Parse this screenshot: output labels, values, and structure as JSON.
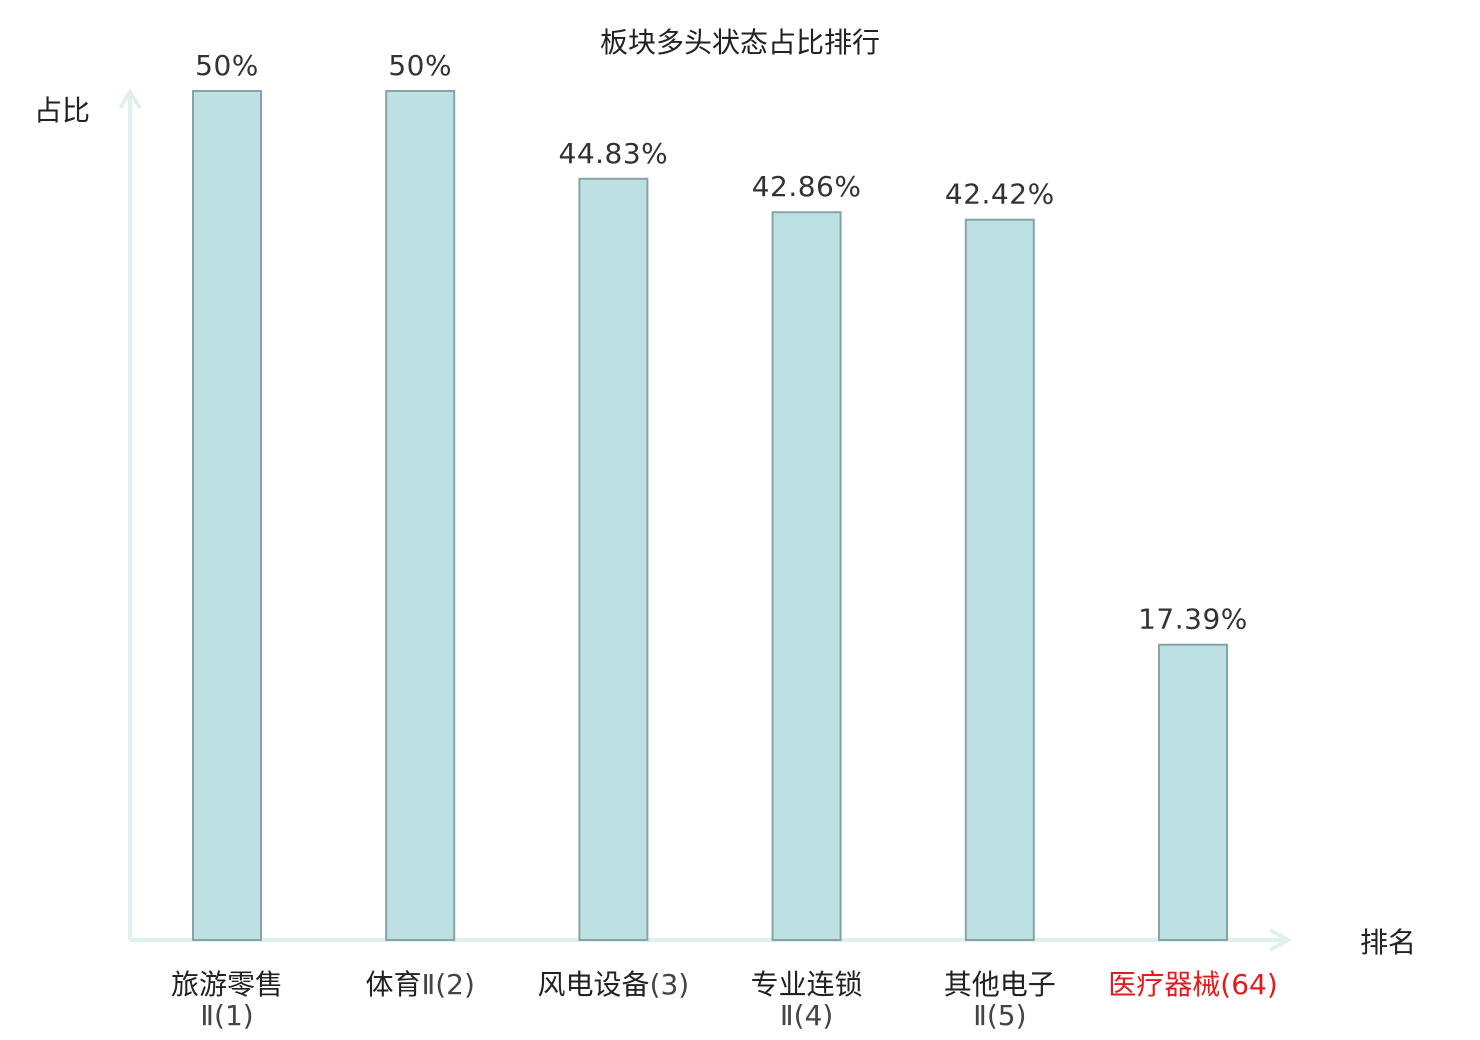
{
  "chart_data": {
    "type": "bar",
    "title": "板块多头状态占比排行",
    "ylabel": "占比",
    "xlabel": "排名",
    "ylim": [
      0,
      50
    ],
    "grid": false,
    "categories": [
      {
        "name": "旅游零售",
        "rank": "Ⅱ(1)",
        "highlight": false
      },
      {
        "name": "体育",
        "rank": "Ⅱ(2)",
        "highlight": false
      },
      {
        "name": "风电设备",
        "rank": "(3)",
        "highlight": false
      },
      {
        "name": "专业连锁",
        "rank": "Ⅱ(4)",
        "highlight": false
      },
      {
        "name": "其他电子",
        "rank": "Ⅱ(5)",
        "highlight": false
      },
      {
        "name": "医疗器械",
        "rank": "(64)",
        "highlight": true
      }
    ],
    "values": [
      50,
      50,
      44.83,
      42.86,
      42.42,
      17.39
    ],
    "value_labels": [
      "50%",
      "50%",
      "44.83%",
      "42.86%",
      "42.42%",
      "17.39%"
    ],
    "colors": {
      "bar_fill": "#bde0e3",
      "bar_stroke": "#86a3a5",
      "axis": "#dff1ef",
      "highlight_text": "#e41a1c",
      "text": "#222222"
    }
  }
}
